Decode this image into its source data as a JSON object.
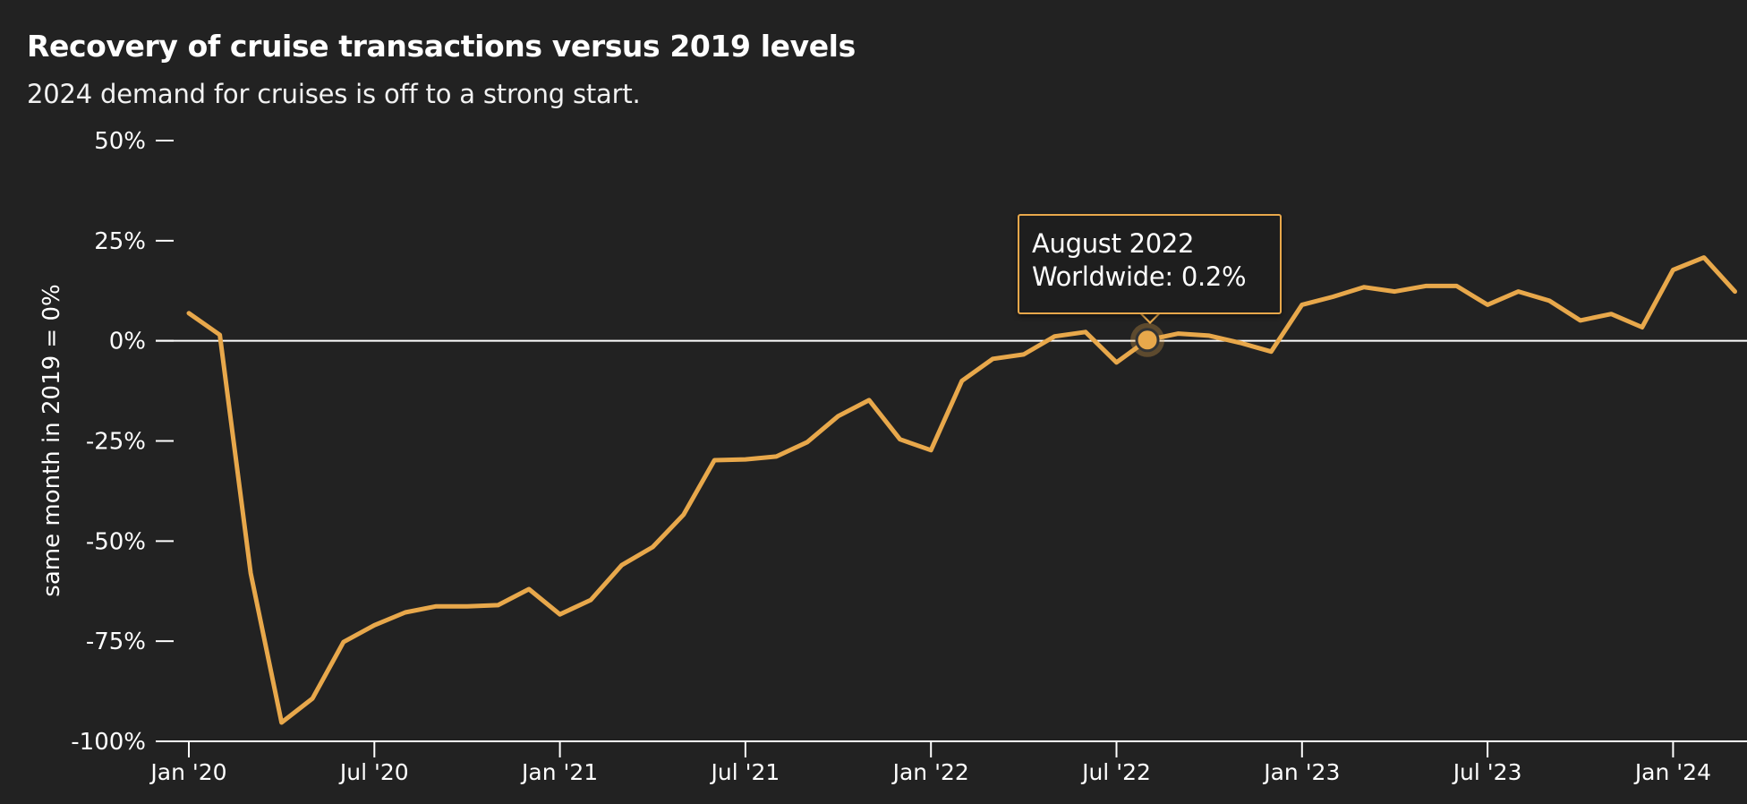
{
  "header": {
    "title": "Recovery of cruise transactions versus 2019 levels",
    "subtitle": "2024 demand for cruises is off to a strong start."
  },
  "tooltip": {
    "line1": "August 2022",
    "line2": "Worldwide: 0.2%",
    "highlight_index": 31
  },
  "colors": {
    "background": "#222222",
    "line": "#e8a84b",
    "axis": "#ffffff",
    "text": "#ffffff"
  },
  "chart_data": {
    "type": "line",
    "title": "Recovery of cruise transactions versus 2019 levels",
    "subtitle": "2024 demand for cruises is off to a strong start.",
    "xlabel": "",
    "ylabel": "same month in 2019 = 0%",
    "ylim": [
      -100,
      50
    ],
    "yticks": [
      50,
      25,
      0,
      -25,
      -50,
      -75,
      -100
    ],
    "ytick_labels": [
      "50%",
      "25%",
      "0%",
      "-25%",
      "-50%",
      "-75%",
      "-100%"
    ],
    "xtick_labels": [
      "Jan '20",
      "Jul '20",
      "Jan '21",
      "Jul '21",
      "Jan '22",
      "Jul '22",
      "Jan '23",
      "Jul '23",
      "Jan '24"
    ],
    "xtick_month_index": [
      0,
      6,
      12,
      18,
      24,
      30,
      36,
      42,
      48
    ],
    "grid": false,
    "zero_line": true,
    "legend": "none",
    "series": [
      {
        "name": "Worldwide",
        "x": [
          "2020-01",
          "2020-02",
          "2020-03",
          "2020-04",
          "2020-05",
          "2020-06",
          "2020-07",
          "2020-08",
          "2020-09",
          "2020-10",
          "2020-11",
          "2020-12",
          "2021-01",
          "2021-02",
          "2021-03",
          "2021-04",
          "2021-05",
          "2021-06",
          "2021-07",
          "2021-08",
          "2021-09",
          "2021-10",
          "2021-11",
          "2021-12",
          "2022-01",
          "2022-02",
          "2022-03",
          "2022-04",
          "2022-05",
          "2022-06",
          "2022-07",
          "2022-08",
          "2022-09",
          "2022-10",
          "2022-11",
          "2022-12",
          "2023-01",
          "2023-02",
          "2023-03",
          "2023-04",
          "2023-05",
          "2023-06",
          "2023-07",
          "2023-08",
          "2023-09",
          "2023-10",
          "2023-11",
          "2023-12",
          "2024-01",
          "2024-02",
          "2024-03"
        ],
        "values": [
          6.9,
          1.5,
          -58,
          -95.3,
          -89.3,
          -75.2,
          -71,
          -67.8,
          -66.3,
          -66.3,
          -66,
          -62,
          -68.3,
          -64.7,
          -56,
          -51.5,
          -43.4,
          -29.8,
          -29.6,
          -28.9,
          -25.3,
          -18.8,
          -14.8,
          -24.6,
          -27.3,
          -10,
          -4.5,
          -3.4,
          1.1,
          2.2,
          -5.4,
          0.2,
          1.8,
          1.3,
          -0.5,
          -2.7,
          9,
          11,
          13.4,
          12.3,
          13.7,
          13.7,
          9,
          12.3,
          10,
          5.1,
          6.7,
          3.4,
          17.7,
          20.8,
          12.3
        ]
      }
    ]
  }
}
